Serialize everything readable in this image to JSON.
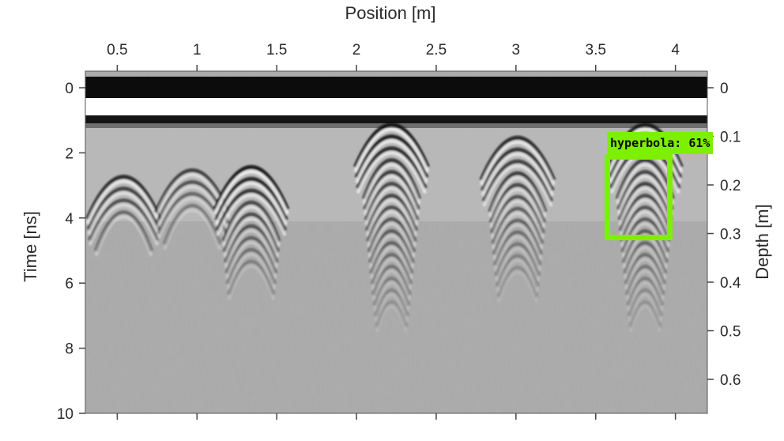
{
  "figure": {
    "x_axis_title": "Position [m]",
    "y_left_title": "Time [ns]",
    "y_right_title": "Depth [m]",
    "x_ticks": [
      "0.5",
      "1",
      "1.5",
      "2",
      "2.5",
      "3",
      "3.5",
      "4"
    ],
    "x_tick_values": [
      0.5,
      1,
      1.5,
      2,
      2.5,
      3,
      3.5,
      4
    ],
    "x_range": [
      0.3,
      4.2
    ],
    "time_ticks": [
      "0",
      "2",
      "4",
      "6",
      "8",
      "10"
    ],
    "time_tick_values": [
      0,
      2,
      4,
      6,
      8,
      10
    ],
    "time_range": [
      0,
      10
    ],
    "depth_ticks": [
      "0",
      "0.1",
      "0.2",
      "0.3",
      "0.4",
      "0.5",
      "0.6"
    ],
    "depth_tick_values": [
      0,
      0.1,
      0.2,
      0.3,
      0.4,
      0.5,
      0.6
    ],
    "hyperbolas": [
      {
        "x": 0.54,
        "t": 2.7,
        "rings": 4,
        "strength": 0.9
      },
      {
        "x": 0.97,
        "t": 2.5,
        "rings": 4,
        "strength": 0.7
      },
      {
        "x": 1.34,
        "t": 2.4,
        "rings": 9,
        "strength": 1.0
      },
      {
        "x": 2.22,
        "t": 1.1,
        "rings": 16,
        "strength": 1.0
      },
      {
        "x": 3.01,
        "t": 1.5,
        "rings": 12,
        "strength": 0.9
      },
      {
        "x": 3.81,
        "t": 1.1,
        "rings": 16,
        "strength": 0.95
      }
    ]
  },
  "detection": {
    "label": "hyperbola: 61%",
    "color": "#7cf000"
  }
}
